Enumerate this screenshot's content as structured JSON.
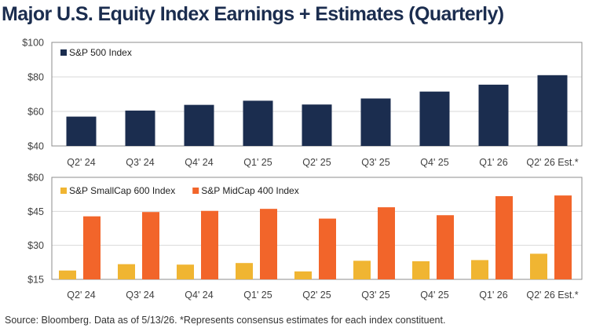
{
  "page": {
    "title": "Major U.S. Equity Index Earnings + Estimates (Quarterly)",
    "source_note": "Source: Bloomberg. Data as of 5/13/26. *Represents consensus estimates for each index constituent."
  },
  "colors": {
    "sp500": "#1b2d4f",
    "smallcap600": "#f0b532",
    "midcap400": "#f2652a",
    "frame": "#8c8c8c",
    "grid": "#d9d9d9",
    "tick_text": "#404040"
  },
  "chart_data": [
    {
      "type": "bar",
      "categories": [
        "Q2' 24",
        "Q3' 24",
        "Q4' 24",
        "Q1' 25",
        "Q2' 25",
        "Q3' 25",
        "Q4' 25",
        "Q1' 26",
        "Q2' 26 Est.*"
      ],
      "series": [
        {
          "name": "S&P 500 Index",
          "values": [
            57.0,
            60.5,
            63.8,
            66.2,
            64.0,
            67.5,
            71.5,
            75.5,
            81.0
          ]
        }
      ],
      "yticks": [
        "$40",
        "$60",
        "$80",
        "$100"
      ],
      "ylim": [
        40,
        100
      ],
      "grid": true,
      "legend": "top-left"
    },
    {
      "type": "bar",
      "categories": [
        "Q2' 24",
        "Q3' 24",
        "Q4' 24",
        "Q1' 25",
        "Q2' 25",
        "Q3' 25",
        "Q4' 25",
        "Q1' 26",
        "Q2' 26 Est.*"
      ],
      "series": [
        {
          "name": "S&P SmallCap 600 Index",
          "values": [
            18.9,
            21.7,
            21.5,
            22.2,
            18.5,
            23.2,
            23.0,
            23.5,
            26.3
          ]
        },
        {
          "name": "S&P MidCap 400 Index",
          "values": [
            42.8,
            44.7,
            45.2,
            46.1,
            41.8,
            46.8,
            43.3,
            51.7,
            52.0
          ]
        }
      ],
      "yticks": [
        "$15",
        "$30",
        "$45",
        "$60"
      ],
      "ylim": [
        15,
        60
      ],
      "grid": true,
      "legend": "top-left"
    }
  ]
}
